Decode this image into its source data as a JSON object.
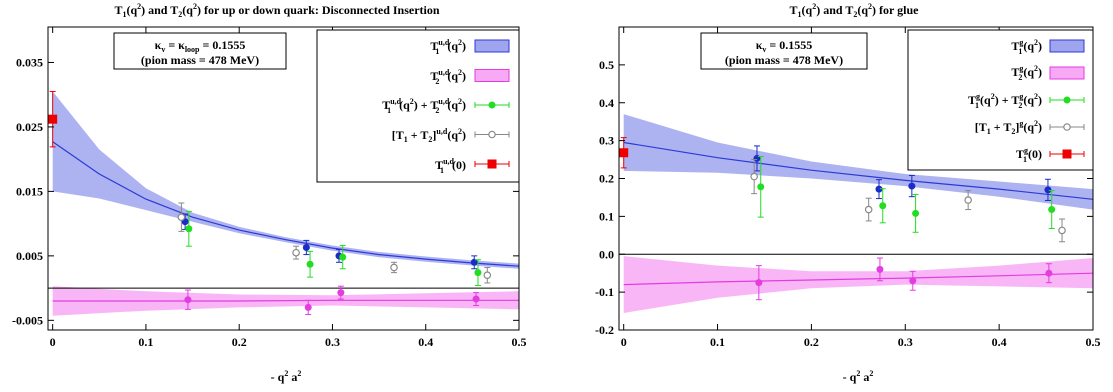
{
  "chart_data": [
    {
      "type": "scatter",
      "title": "T1(q2) and T2(q2) for up or down quark: Disconnected Insertion",
      "title_parts": {
        "a": "T",
        "b": "1",
        "c": "(q",
        "d": "2",
        "e": ") and T",
        "f": "2",
        "g": "(q",
        "h": "2",
        "i": ") for up or down quark: Disconnected Insertion"
      },
      "xlabel": "- q2 a2",
      "xlabel_parts": {
        "a": "- q",
        "b": "2",
        "c": " a",
        "d": "2"
      },
      "ylabel": "",
      "xlim": [
        -0.005,
        0.5
      ],
      "ylim": [
        -0.0065,
        0.0405
      ],
      "x_ticks": [
        0,
        0.1,
        0.2,
        0.3,
        0.4,
        0.5
      ],
      "x_tick_labels": [
        "0",
        "0.1",
        "0.2",
        "0.3",
        "0.4",
        "0.5"
      ],
      "y_ticks": [
        -0.005,
        0.005,
        0.015,
        0.025,
        0.035
      ],
      "y_tick_labels": [
        "-0.005",
        "0.005",
        "0.015",
        "0.025",
        "0.035"
      ],
      "zero_line": 0,
      "grid": false,
      "legend_placement": "top-right",
      "annotation": {
        "line1": {
          "a": "κ",
          "b": "v",
          "c": " = κ",
          "d": "loop",
          "e": " = 0.1555"
        },
        "line2": "(pion mass = 478 MeV)"
      },
      "legend": [
        {
          "name": "T1u,d(q2)",
          "parts": {
            "a": "T",
            "b": "u,d",
            "c": "1",
            "d": "(q",
            "e": "2",
            "f": ")"
          },
          "kind": "band",
          "color": "#2c3ad6",
          "fill": "#9fa4ee"
        },
        {
          "name": "T2u,d(q2)",
          "parts": {
            "a": "T",
            "b": "u,d",
            "c": "2",
            "d": "(q",
            "e": "2",
            "f": ")"
          },
          "kind": "band",
          "color": "#e33ce0",
          "fill": "#f8a9f6"
        },
        {
          "name": "T1u,d(q2) + T2u,d(q2)",
          "parts": {
            "a": "T",
            "b": "u,d",
            "c": "1",
            "d": "(q",
            "e": "2",
            "f": ") + T",
            "g": "u,d",
            "h": "2",
            "i": "(q",
            "j": "2",
            "k": ")"
          },
          "kind": "point",
          "color": "#22dd22",
          "marker": "circle"
        },
        {
          "name": "[T1 + T2]u,d(q2)",
          "parts": {
            "a": "[T",
            "b": "1",
            "c": " + T",
            "d": "2",
            "e": "]",
            "f": "u,d",
            "g": "(q",
            "h": "2",
            "i": ")"
          },
          "kind": "point",
          "color": "#888888",
          "marker": "open-circle"
        },
        {
          "name": "T1u,d(0)",
          "parts": {
            "a": "T",
            "b": "u,d",
            "c": "1",
            "d": "(0)"
          },
          "kind": "point",
          "color": "#ee0000",
          "marker": "square"
        }
      ],
      "bands": [
        {
          "series": "T1u,d(q2)",
          "x": [
            0,
            0.05,
            0.1,
            0.15,
            0.2,
            0.25,
            0.3,
            0.35,
            0.4,
            0.45,
            0.5
          ],
          "y": [
            0.0227,
            0.0177,
            0.0138,
            0.011,
            0.009,
            0.0075,
            0.0062,
            0.0052,
            0.0045,
            0.0039,
            0.0034
          ],
          "upper": [
            0.0305,
            0.0215,
            0.0155,
            0.0117,
            0.0095,
            0.0079,
            0.0066,
            0.0056,
            0.0049,
            0.0043,
            0.0038
          ],
          "lower": [
            0.015,
            0.0139,
            0.0121,
            0.0103,
            0.0085,
            0.0071,
            0.0058,
            0.0048,
            0.0041,
            0.0035,
            0.003
          ]
        },
        {
          "series": "T2u,d(q2)",
          "x": [
            0,
            0.1,
            0.2,
            0.3,
            0.4,
            0.5
          ],
          "y": [
            -0.002,
            -0.002,
            -0.002,
            -0.0019,
            -0.0019,
            -0.0019
          ],
          "upper": [
            0.0003,
            -0.0005,
            -0.001,
            -0.0011,
            -0.0008,
            -0.0005
          ],
          "lower": [
            -0.0043,
            -0.0035,
            -0.003,
            -0.0027,
            -0.003,
            -0.0033
          ]
        }
      ],
      "series": [
        {
          "name": "T1u,d(q2)",
          "marker": "circle",
          "color": "#1a2bc9",
          "points": [
            {
              "x": 0.142,
              "y": 0.0103,
              "err": 0.0012
            },
            {
              "x": 0.272,
              "y": 0.0063,
              "err": 0.0011
            },
            {
              "x": 0.307,
              "y": 0.005,
              "err": 0.001
            },
            {
              "x": 0.452,
              "y": 0.004,
              "err": 0.001
            }
          ]
        },
        {
          "name": "T2u,d(q2)",
          "marker": "circle",
          "color": "#e33ce0",
          "points": [
            {
              "x": 0.145,
              "y": -0.0018,
              "err": 0.0015
            },
            {
              "x": 0.274,
              "y": -0.003,
              "err": 0.0011
            },
            {
              "x": 0.309,
              "y": -0.0007,
              "err": 0.001
            },
            {
              "x": 0.454,
              "y": -0.0017,
              "err": 0.001
            }
          ]
        },
        {
          "name": "T1u,d(q2) + T2u,d(q2)",
          "marker": "circle",
          "color": "#22dd22",
          "points": [
            {
              "x": 0.146,
              "y": 0.0092,
              "err": 0.0027
            },
            {
              "x": 0.276,
              "y": 0.0037,
              "err": 0.002
            },
            {
              "x": 0.311,
              "y": 0.0048,
              "err": 0.0018
            },
            {
              "x": 0.456,
              "y": 0.0024,
              "err": 0.002
            }
          ]
        },
        {
          "name": "[T1 + T2]u,d(q2)",
          "marker": "open-circle",
          "color": "#888888",
          "points": [
            {
              "x": 0.138,
              "y": 0.011,
              "err": 0.0022
            },
            {
              "x": 0.261,
              "y": 0.0055,
              "err": 0.001
            },
            {
              "x": 0.366,
              "y": 0.0032,
              "err": 0.0008
            },
            {
              "x": 0.466,
              "y": 0.002,
              "err": 0.0012
            }
          ]
        },
        {
          "name": "T1u,d(0)",
          "marker": "square",
          "color": "#ee0000",
          "points": [
            {
              "x": 0.0,
              "y": 0.0262,
              "err": 0.0043
            }
          ]
        }
      ]
    },
    {
      "type": "scatter",
      "title": "T1(q2) and T2(q2) for glue",
      "title_parts": {
        "a": "T",
        "b": "1",
        "c": "(q",
        "d": "2",
        "e": ") and T",
        "f": "2",
        "g": "(q",
        "h": "2",
        "i": ") for glue"
      },
      "xlabel": "- q2 a2",
      "xlabel_parts": {
        "a": "- q",
        "b": "2",
        "c": " a",
        "d": "2"
      },
      "ylabel": "",
      "xlim": [
        -0.005,
        0.5
      ],
      "ylim": [
        -0.2,
        0.6
      ],
      "x_ticks": [
        0,
        0.1,
        0.2,
        0.3,
        0.4,
        0.5
      ],
      "x_tick_labels": [
        "0",
        "0.1",
        "0.2",
        "0.3",
        "0.4",
        "0.5"
      ],
      "y_ticks": [
        -0.2,
        -0.1,
        0.0,
        0.1,
        0.2,
        0.3,
        0.4,
        0.5
      ],
      "y_tick_labels": [
        "-0.2",
        "-0.1",
        "0.0",
        "0.1",
        "0.2",
        "0.3",
        "0.4",
        "0.5"
      ],
      "zero_line": 0,
      "grid": false,
      "legend_placement": "top-right",
      "annotation": {
        "line1": {
          "a": "κ",
          "b": "v",
          "c": " = 0.1555",
          "d": "",
          "e": ""
        },
        "line2": "(pion mass = 478 MeV)"
      },
      "legend": [
        {
          "name": "T1g(q2)",
          "parts": {
            "a": "T",
            "b": "g",
            "c": "1",
            "d": "(q",
            "e": "2",
            "f": ")"
          },
          "kind": "band",
          "color": "#2c3ad6",
          "fill": "#9fa4ee"
        },
        {
          "name": "T2g(q2)",
          "parts": {
            "a": "T",
            "b": "g",
            "c": "2",
            "d": "(q",
            "e": "2",
            "f": ")"
          },
          "kind": "band",
          "color": "#e33ce0",
          "fill": "#f8a9f6"
        },
        {
          "name": "T1g(q2) + T2g(q2)",
          "parts": {
            "a": "T",
            "b": "g",
            "c": "1",
            "d": "(q",
            "e": "2",
            "f": ") + T",
            "g": "g",
            "h": "2",
            "i": "(q",
            "j": "2",
            "k": ")"
          },
          "kind": "point",
          "color": "#22dd22",
          "marker": "circle"
        },
        {
          "name": "[T1 + T2]g(q2)",
          "parts": {
            "a": "[T",
            "b": "1",
            "c": " + T",
            "d": "2",
            "e": "]",
            "f": "g",
            "g": "(q",
            "h": "2",
            "i": ")"
          },
          "kind": "point",
          "color": "#888888",
          "marker": "open-circle"
        },
        {
          "name": "T1g(0)",
          "parts": {
            "a": "T",
            "b": "g",
            "c": "1",
            "d": "(0)"
          },
          "kind": "point",
          "color": "#ee0000",
          "marker": "square"
        }
      ],
      "bands": [
        {
          "series": "T1g(q2)",
          "x": [
            0,
            0.1,
            0.2,
            0.3,
            0.4,
            0.5
          ],
          "y": [
            0.295,
            0.255,
            0.222,
            0.195,
            0.172,
            0.145
          ],
          "upper": [
            0.37,
            0.295,
            0.245,
            0.212,
            0.192,
            0.172
          ],
          "lower": [
            0.22,
            0.215,
            0.2,
            0.18,
            0.152,
            0.118
          ]
        },
        {
          "series": "T2g(q2)",
          "x": [
            0,
            0.1,
            0.2,
            0.3,
            0.4,
            0.5
          ],
          "y": [
            -0.08,
            -0.073,
            -0.068,
            -0.063,
            -0.057,
            -0.05
          ],
          "upper": [
            -0.005,
            -0.03,
            -0.045,
            -0.045,
            -0.03,
            -0.01
          ],
          "lower": [
            -0.155,
            -0.115,
            -0.09,
            -0.08,
            -0.085,
            -0.09
          ]
        }
      ],
      "series": [
        {
          "name": "T1g(q2)",
          "marker": "circle",
          "color": "#1a2bc9",
          "points": [
            {
              "x": 0.142,
              "y": 0.253,
              "err": 0.033
            },
            {
              "x": 0.272,
              "y": 0.172,
              "err": 0.025
            },
            {
              "x": 0.307,
              "y": 0.18,
              "err": 0.028
            },
            {
              "x": 0.452,
              "y": 0.17,
              "err": 0.028
            }
          ]
        },
        {
          "name": "T2g(q2)",
          "marker": "circle",
          "color": "#e33ce0",
          "points": [
            {
              "x": 0.144,
              "y": -0.075,
              "err": 0.045
            },
            {
              "x": 0.273,
              "y": -0.04,
              "err": 0.03
            },
            {
              "x": 0.308,
              "y": -0.07,
              "err": 0.025
            },
            {
              "x": 0.453,
              "y": -0.05,
              "err": 0.025
            }
          ]
        },
        {
          "name": "T1g(q2) + T2g(q2)",
          "marker": "circle",
          "color": "#22dd22",
          "points": [
            {
              "x": 0.146,
              "y": 0.178,
              "err": 0.08
            },
            {
              "x": 0.276,
              "y": 0.128,
              "err": 0.045
            },
            {
              "x": 0.311,
              "y": 0.108,
              "err": 0.05
            },
            {
              "x": 0.456,
              "y": 0.118,
              "err": 0.05
            }
          ]
        },
        {
          "name": "[T1 + T2]g(q2)",
          "marker": "open-circle",
          "color": "#888888",
          "points": [
            {
              "x": 0.139,
              "y": 0.205,
              "err": 0.045
            },
            {
              "x": 0.261,
              "y": 0.118,
              "err": 0.03
            },
            {
              "x": 0.367,
              "y": 0.143,
              "err": 0.025
            },
            {
              "x": 0.467,
              "y": 0.063,
              "err": 0.03
            }
          ]
        },
        {
          "name": "T1g(0)",
          "marker": "square",
          "color": "#ee0000",
          "points": [
            {
              "x": 0.0,
              "y": 0.268,
              "err": 0.04
            }
          ]
        }
      ]
    }
  ]
}
